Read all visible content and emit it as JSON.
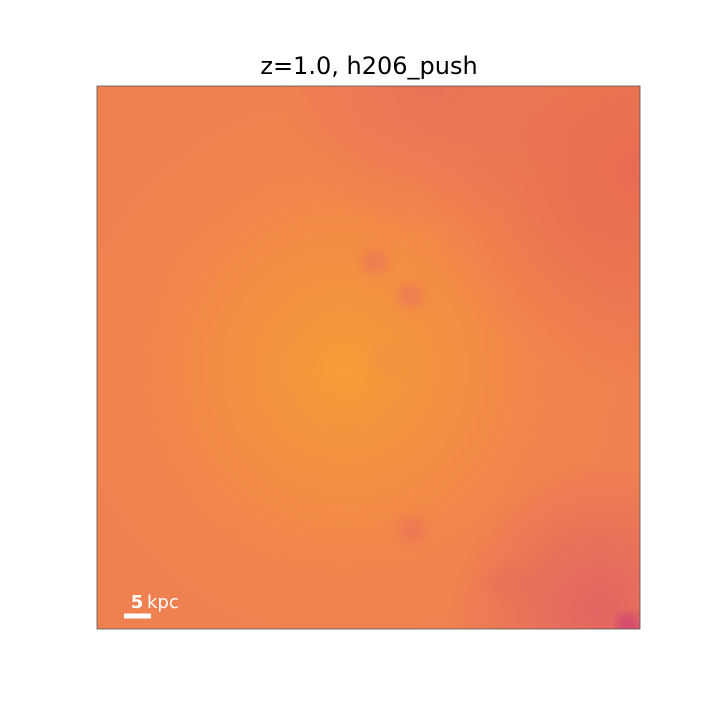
{
  "title": "z=1.0, h206_push",
  "scale_bar": {
    "length": 5,
    "unit": "kpc"
  }
}
